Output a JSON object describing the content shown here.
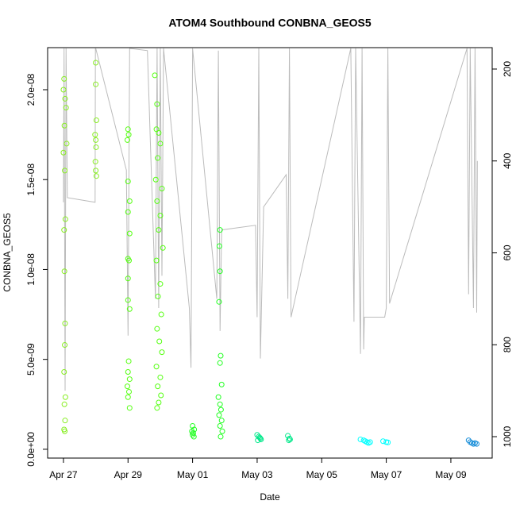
{
  "chart_data": {
    "type": "scatter",
    "title": "ATOM4 Southbound CONBNA_GEOS5",
    "x_label": "Date",
    "y_label": "CONBNA_GEOS5",
    "xlim": [
      -0.49,
      13.28
    ],
    "xticks": [
      {
        "value": 0,
        "label": "Apr 27"
      },
      {
        "value": 2,
        "label": "Apr 29"
      },
      {
        "value": 4,
        "label": "May 01"
      },
      {
        "value": 6,
        "label": "May 03"
      },
      {
        "value": 8,
        "label": "May 05"
      },
      {
        "value": 10,
        "label": "May 07"
      },
      {
        "value": 12,
        "label": "May 09"
      }
    ],
    "ylim": [
      -4.9e-10,
      2.234e-08
    ],
    "yticks": [
      {
        "value": 0,
        "label": "0.0e+00"
      },
      {
        "value": 5e-09,
        "label": "5.0e-09"
      },
      {
        "value": 1e-08,
        "label": "1.0e-08"
      },
      {
        "value": 1.5e-08,
        "label": "1.5e-08"
      },
      {
        "value": 2e-08,
        "label": "2.0e-08"
      }
    ],
    "y2lim": [
      1046.6,
      153.4
    ],
    "y2ticks": [
      200,
      400,
      600,
      800,
      1000
    ],
    "series": [
      {
        "color": "#88ee22",
        "x": [
          0.02,
          0.0,
          0.05,
          0.08,
          0.03,
          0.1,
          0.0,
          0.04,
          0.06,
          0.02,
          0.03,
          0.05,
          0.04,
          0.02,
          0.06,
          0.03,
          0.05,
          0.02,
          0.04,
          1.0,
          1.0,
          1.02,
          0.98,
          1.0,
          1.01,
          0.99,
          1.0,
          1.02
        ],
        "values": [
          2.06e-08,
          2e-08,
          1.95e-08,
          1.9e-08,
          1.8e-08,
          1.7e-08,
          1.65e-08,
          1.55e-08,
          1.28e-08,
          1.22e-08,
          9.9e-09,
          7e-09,
          5.8e-09,
          4.3e-09,
          2.9e-09,
          2.5e-09,
          1.6e-09,
          1.1e-09,
          1e-09,
          2.15e-08,
          2.03e-08,
          1.83e-08,
          1.75e-08,
          1.72e-08,
          1.68e-08,
          1.6e-08,
          1.55e-08,
          1.52e-08
        ]
      },
      {
        "color": "#55ff11",
        "x": [
          2.0,
          2.02,
          1.98,
          2.0,
          2.05,
          2.0,
          2.05,
          2.0,
          2.03,
          2.0,
          2.0,
          2.05,
          2.02,
          2.0,
          2.05,
          1.98,
          2.03,
          2.0,
          2.05,
          2.83,
          2.9,
          2.88,
          2.95,
          3.0,
          2.92,
          2.86,
          3.05,
          2.9,
          3.0,
          2.95,
          3.08,
          2.88,
          3.0,
          2.93,
          3.03,
          2.9,
          2.97,
          3.05,
          2.88,
          3.0,
          2.92,
          3.02,
          2.95,
          2.9
        ],
        "values": [
          1.78e-08,
          1.75e-08,
          1.72e-08,
          1.49e-08,
          1.38e-08,
          1.32e-08,
          1.2e-08,
          1.06e-08,
          1.05e-08,
          9.5e-09,
          8.3e-09,
          7.8e-09,
          4.9e-09,
          4.3e-09,
          3.9e-09,
          3.5e-09,
          3.2e-09,
          2.9e-09,
          2.3e-09,
          2.08e-08,
          1.92e-08,
          1.78e-08,
          1.76e-08,
          1.7e-08,
          1.62e-08,
          1.5e-08,
          1.45e-08,
          1.38e-08,
          1.3e-08,
          1.22e-08,
          1.12e-08,
          1.05e-08,
          9.2e-09,
          8.5e-09,
          7.5e-09,
          6.7e-09,
          6e-09,
          5.4e-09,
          4.6e-09,
          4e-09,
          3.5e-09,
          3e-09,
          2.6e-09,
          2.3e-09
        ]
      },
      {
        "color": "#22ff22",
        "x": [
          4.0,
          4.05,
          3.98,
          4.02,
          4.0,
          4.04,
          4.85,
          4.83,
          4.85,
          4.82,
          4.87,
          4.85,
          4.9,
          4.8,
          4.85,
          4.88,
          4.82,
          4.9,
          4.85,
          4.92,
          4.87
        ],
        "values": [
          1.3e-09,
          1.1e-09,
          1e-09,
          9e-10,
          8e-10,
          7e-10,
          1.22e-08,
          1.13e-08,
          9.9e-09,
          8.2e-09,
          5.2e-09,
          4.8e-09,
          3.6e-09,
          2.9e-09,
          2.5e-09,
          2.2e-09,
          1.9e-09,
          1.6e-09,
          1.3e-09,
          1e-09,
          7e-10
        ]
      },
      {
        "color": "#00e88a",
        "x": [
          6.0,
          6.05,
          6.1,
          6.02,
          6.08,
          6.12,
          6.95,
          7.0,
          6.98,
          7.02
        ],
        "values": [
          8e-10,
          7e-10,
          6e-10,
          5e-10,
          6.5e-10,
          5.5e-10,
          7.5e-10,
          6e-10,
          5e-10,
          5.5e-10
        ]
      },
      {
        "color": "#00ffff",
        "x": [
          9.2,
          9.3,
          9.4,
          9.45,
          9.35,
          9.5,
          9.9,
          10.0,
          10.05
        ],
        "values": [
          5.5e-10,
          5e-10,
          4e-10,
          3.5e-10,
          4.5e-10,
          4e-10,
          4.5e-10,
          4e-10,
          3.8e-10
        ]
      },
      {
        "color": "#1a8fd9",
        "x": [
          12.55,
          12.6,
          12.65,
          12.7,
          12.75,
          12.8
        ],
        "values": [
          5e-10,
          4e-10,
          3.5e-10,
          3e-10,
          3.5e-10,
          3e-10
        ]
      }
    ],
    "pressure": {
      "axis": "y2",
      "color": "#bbbbbb",
      "x": [
        0.0,
        0.02,
        0.05,
        0.08,
        0.12,
        0.98,
        0.99,
        1.0,
        1.95,
        2.0,
        2.05,
        2.6,
        2.85,
        2.9,
        2.95,
        3.0,
        3.05,
        3.1,
        3.9,
        3.95,
        4.0,
        4.75,
        4.8,
        4.85,
        4.9,
        5.95,
        6.0,
        6.05,
        6.1,
        6.2,
        6.9,
        6.95,
        7.0,
        7.05,
        8.9,
        9.0,
        9.05,
        9.2,
        9.25,
        9.3,
        9.32,
        9.95,
        10.0,
        10.05,
        10.1,
        12.5,
        12.55,
        12.6,
        12.7,
        12.75,
        12.8,
        12.82
      ],
      "values": [
        490,
        155,
        900,
        155,
        480,
        490,
        155,
        155,
        420,
        780,
        155,
        160,
        700,
        155,
        720,
        155,
        650,
        155,
        720,
        850,
        155,
        700,
        160,
        770,
        550,
        540,
        740,
        155,
        830,
        500,
        430,
        700,
        155,
        740,
        155,
        750,
        155,
        820,
        155,
        810,
        740,
        740,
        720,
        155,
        710,
        155,
        690,
        155,
        720,
        155,
        730,
        400
      ]
    }
  }
}
